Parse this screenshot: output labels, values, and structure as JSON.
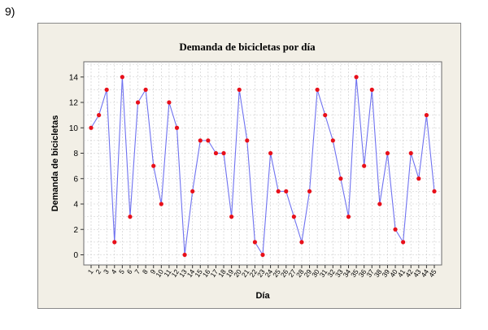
{
  "question_number": "9)",
  "chart_data": {
    "type": "line",
    "title": "Demanda de bicicletas por día",
    "xlabel": "Día",
    "ylabel": "Demanda de bicicletas",
    "x": [
      1,
      2,
      3,
      4,
      5,
      6,
      7,
      8,
      9,
      10,
      11,
      12,
      13,
      14,
      15,
      16,
      17,
      18,
      19,
      20,
      21,
      22,
      23,
      24,
      25,
      26,
      27,
      28,
      29,
      30,
      31,
      32,
      33,
      34,
      35,
      36,
      37,
      38,
      39,
      40,
      41,
      42,
      43,
      44,
      45
    ],
    "x_tick_labels": [
      "1",
      "2",
      "3",
      "4",
      "5",
      "6",
      "7",
      "8",
      "9",
      "10",
      "11",
      "12",
      "13",
      "14",
      "15",
      "16",
      "17",
      "18",
      "19",
      "20",
      "21",
      "22",
      "23",
      "24",
      "25",
      "26",
      "27",
      "28",
      "29",
      "30",
      "31",
      "32",
      "33",
      "34",
      "35",
      "36",
      "37",
      "38",
      "39",
      "40",
      "41",
      "42",
      "43",
      "44",
      "45"
    ],
    "values": [
      10,
      11,
      13,
      1,
      14,
      3,
      12,
      13,
      7,
      4,
      12,
      10,
      0,
      5,
      9,
      9,
      8,
      8,
      3,
      13,
      9,
      1,
      0,
      8,
      5,
      5,
      3,
      1,
      5,
      13,
      11,
      9,
      6,
      3,
      14,
      7,
      13,
      4,
      8,
      2,
      1,
      8,
      6,
      11,
      5
    ],
    "y_ticks": [
      0,
      2,
      4,
      6,
      8,
      10,
      12,
      14
    ],
    "ylim": [
      -0.8,
      15.2
    ],
    "grid": true,
    "colors": {
      "line": "#6f72f0",
      "marker": "#e8101a",
      "plot_bg": "#ffffff",
      "frame_bg": "#f2efe6",
      "grid": "#c8c8c8"
    }
  }
}
